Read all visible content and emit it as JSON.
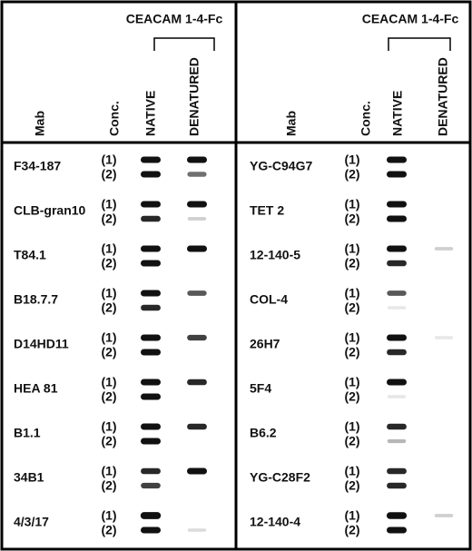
{
  "panels": [
    {
      "header": "CEACAM 1-4-Fc",
      "columns": [
        "Mab",
        "Conc.",
        "NATIVE",
        "DENATURED"
      ],
      "rows": [
        {
          "mab": "F34-187",
          "conc": [
            "(1)",
            "(2)"
          ]
        },
        {
          "mab": "CLB-gran10",
          "conc": [
            "(1)",
            "(2)"
          ]
        },
        {
          "mab": "T84.1",
          "conc": [
            "(1)",
            "(2)"
          ]
        },
        {
          "mab": "B18.7.7",
          "conc": [
            "(1)",
            "(2)"
          ]
        },
        {
          "mab": "D14HD11",
          "conc": [
            "(1)",
            "(2)"
          ]
        },
        {
          "mab": "HEA 81",
          "conc": [
            "(1)",
            "(2)"
          ]
        },
        {
          "mab": "B1.1",
          "conc": [
            "(1)",
            "(2)"
          ]
        },
        {
          "mab": "34B1",
          "conc": [
            "(1)",
            "(2)"
          ]
        },
        {
          "mab": "4/3/17",
          "conc": [
            "(1)",
            "(2)"
          ]
        }
      ]
    },
    {
      "header": "CEACAM 1-4-Fc",
      "columns": [
        "Mab",
        "Conc.",
        "NATIVE",
        "DENATURED"
      ],
      "rows": [
        {
          "mab": "YG-C94G7",
          "conc": [
            "(1)",
            "(2)"
          ]
        },
        {
          "mab": "TET 2",
          "conc": [
            "(1)",
            "(2)"
          ]
        },
        {
          "mab": "12-140-5",
          "conc": [
            "(1)",
            "(2)"
          ]
        },
        {
          "mab": "COL-4",
          "conc": [
            "(1)",
            "(2)"
          ]
        },
        {
          "mab": "26H7",
          "conc": [
            "(1)",
            "(2)"
          ]
        },
        {
          "mab": "5F4",
          "conc": [
            "(1)",
            "(2)"
          ]
        },
        {
          "mab": "B6.2",
          "conc": [
            "(1)",
            "(2)"
          ]
        },
        {
          "mab": "YG-C28F2",
          "conc": [
            "(1)",
            "(2)"
          ]
        },
        {
          "mab": "12-140-4",
          "conc": [
            "(1)",
            "(2)"
          ]
        }
      ]
    }
  ]
}
